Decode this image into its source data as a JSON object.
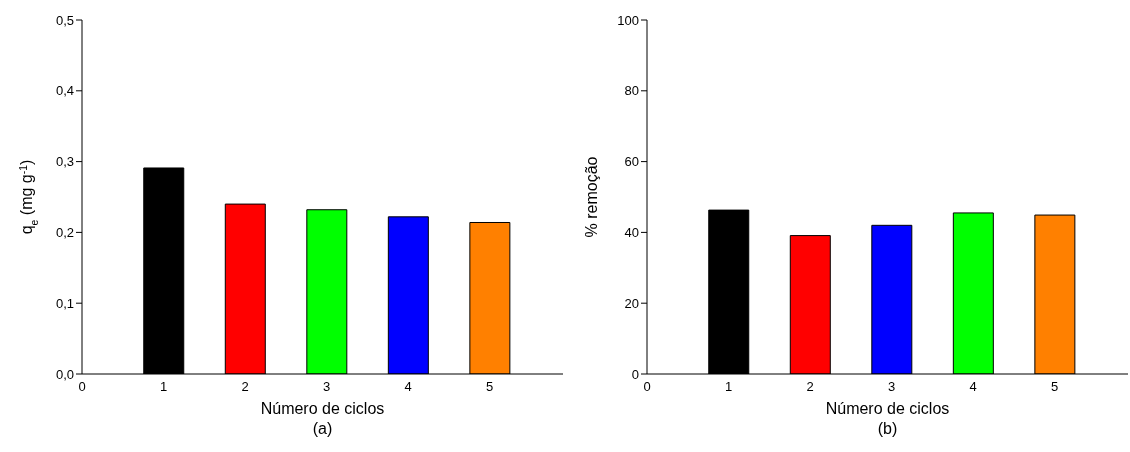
{
  "chart_data": [
    {
      "type": "bar",
      "title": "(a)",
      "xlabel": "Número de ciclos",
      "ylabel": "q$_{e}$ (mg g$^{-1}$)",
      "x": [
        1,
        2,
        3,
        4,
        5
      ],
      "values": [
        0.291,
        0.24,
        0.232,
        0.222,
        0.214
      ],
      "colors": [
        "#000000",
        "#ff0000",
        "#00ff00",
        "#0000ff",
        "#ff8000"
      ],
      "xlim": [
        0,
        5.9
      ],
      "xticks": [
        0,
        1,
        2,
        3,
        4,
        5
      ],
      "ylim": [
        0,
        0.5
      ],
      "yticks": [
        {
          "value": 0,
          "label": "0,0"
        },
        {
          "value": 0.1,
          "label": "0,1"
        },
        {
          "value": 0.2,
          "label": "0,2"
        },
        {
          "value": 0.3,
          "label": "0,3"
        },
        {
          "value": 0.4,
          "label": "0,4"
        },
        {
          "value": 0.5,
          "label": "0,5"
        }
      ],
      "grid": false,
      "legend": false
    },
    {
      "type": "bar",
      "title": "(b)",
      "xlabel": "Número de ciclos",
      "ylabel": "% remoção",
      "x": [
        1,
        2,
        3,
        4,
        5
      ],
      "values": [
        46.3,
        39.1,
        42.0,
        45.5,
        44.9
      ],
      "colors": [
        "#000000",
        "#ff0000",
        "#0000ff",
        "#00ff00",
        "#ff8000"
      ],
      "xlim": [
        0,
        5.9
      ],
      "xticks": [
        0,
        1,
        2,
        3,
        4,
        5
      ],
      "ylim": [
        0,
        100
      ],
      "yticks": [
        0,
        20,
        40,
        60,
        80,
        100
      ],
      "grid": false,
      "legend": false
    }
  ]
}
